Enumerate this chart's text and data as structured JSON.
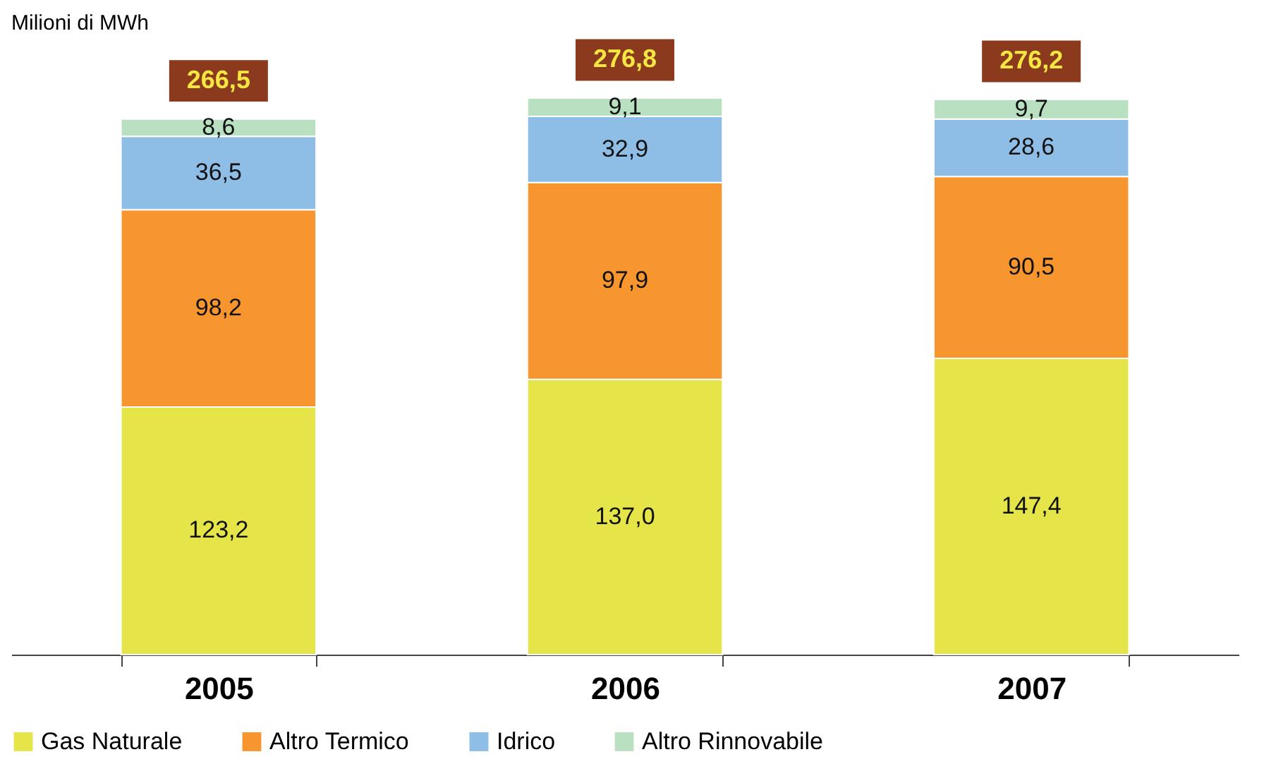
{
  "chart_data": {
    "type": "bar",
    "stacked": true,
    "ylabel": "Milioni di MWh",
    "categories": [
      "2005",
      "2006",
      "2007"
    ],
    "series": [
      {
        "name": "Gas Naturale",
        "color": "#e5e54a",
        "values": [
          123.2,
          137.0,
          147.4
        ],
        "value_labels": [
          "123,2",
          "137,0",
          "147,4"
        ]
      },
      {
        "name": "Altro Termico",
        "color": "#f7962f",
        "values": [
          98.2,
          97.9,
          90.5
        ],
        "value_labels": [
          "98,2",
          "97,9",
          "90,5"
        ]
      },
      {
        "name": "Idrico",
        "color": "#8ebde6",
        "values": [
          36.5,
          32.9,
          28.6
        ],
        "value_labels": [
          "36,5",
          "32,9",
          "28,6"
        ]
      },
      {
        "name": "Altro Rinnovabile",
        "color": "#b9e0c0",
        "values": [
          8.6,
          9.1,
          9.7
        ],
        "value_labels": [
          "8,6",
          "9,1",
          "9,7"
        ]
      }
    ],
    "totals": [
      "266,5",
      "276,8",
      "276,2"
    ],
    "legend": "bottom",
    "grid": false
  }
}
